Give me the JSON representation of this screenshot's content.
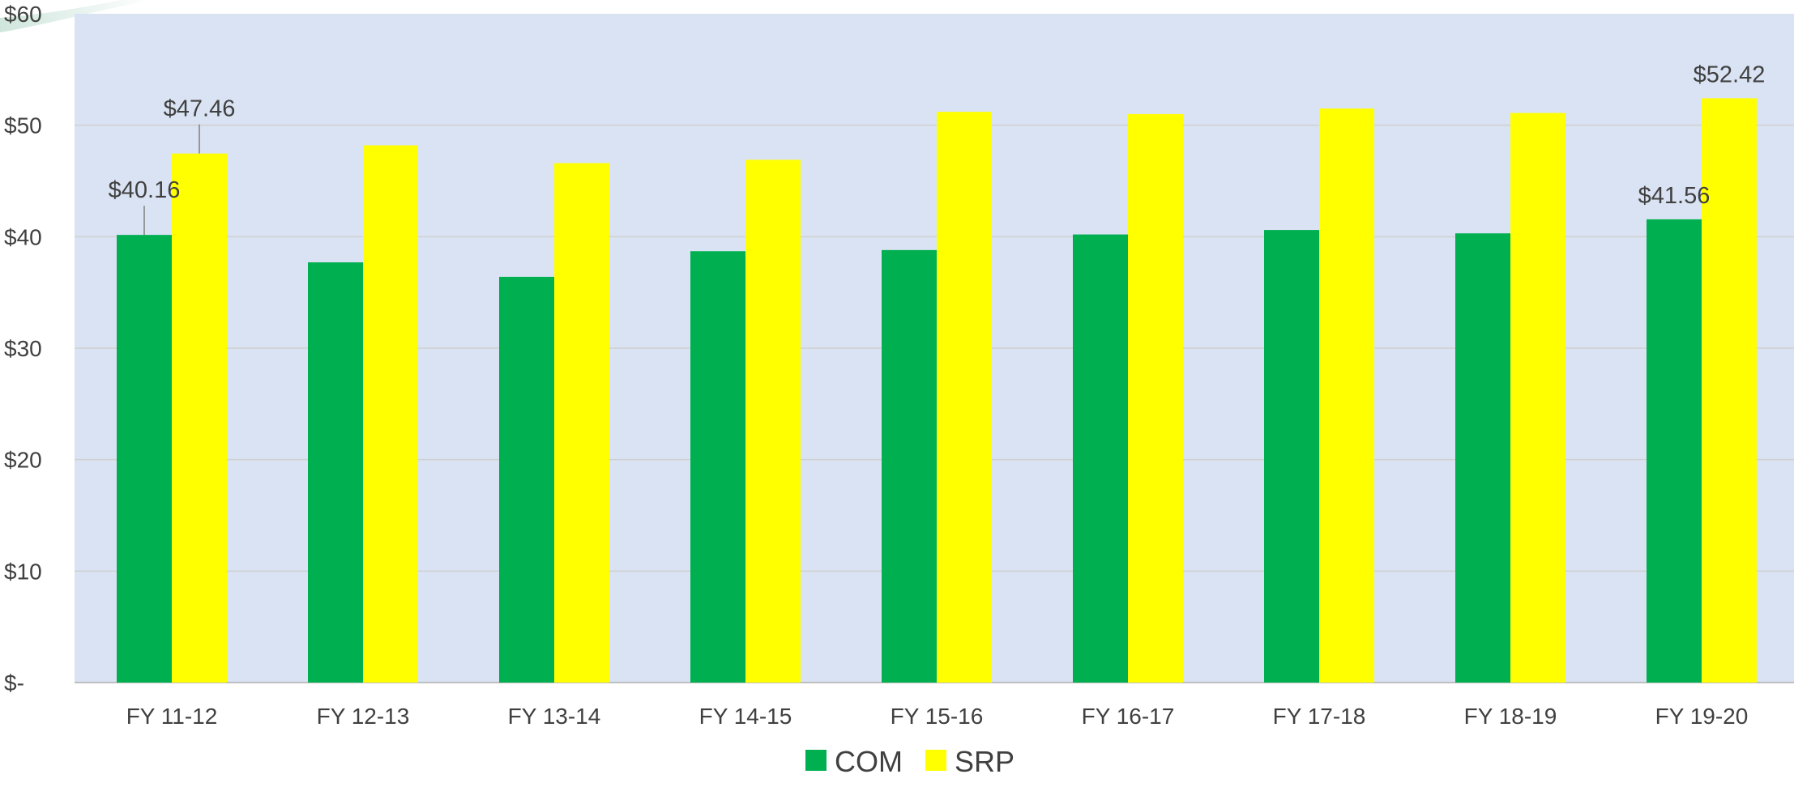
{
  "chart_data": {
    "type": "bar",
    "title": "",
    "xlabel": "",
    "ylabel": "",
    "categories": [
      "FY 11-12",
      "FY 12-13",
      "FY 13-14",
      "FY 14-15",
      "FY 15-16",
      "FY 16-17",
      "FY 17-18",
      "FY 18-19",
      "FY 19-20"
    ],
    "series": [
      {
        "name": "COM",
        "color": "#00B050",
        "values": [
          40.16,
          37.7,
          36.4,
          38.7,
          38.8,
          40.2,
          40.6,
          40.3,
          41.56
        ]
      },
      {
        "name": "SRP",
        "color": "#FFFF00",
        "values": [
          47.46,
          48.2,
          46.6,
          46.9,
          51.2,
          51.0,
          51.5,
          51.1,
          52.42
        ]
      }
    ],
    "ylim": [
      0,
      60
    ],
    "yticks": [
      {
        "value": 0,
        "label": "$-"
      },
      {
        "value": 10,
        "label": "$10"
      },
      {
        "value": 20,
        "label": "$20"
      },
      {
        "value": 30,
        "label": "$30"
      },
      {
        "value": 40,
        "label": "$40"
      },
      {
        "value": 50,
        "label": "$50"
      },
      {
        "value": 60,
        "label": "$60"
      }
    ],
    "data_labels": [
      {
        "series": 0,
        "index": 0,
        "text": "$40.16",
        "leader": true
      },
      {
        "series": 1,
        "index": 0,
        "text": "$47.46",
        "leader": true
      },
      {
        "series": 0,
        "index": 8,
        "text": "$41.56",
        "leader": false
      },
      {
        "series": 1,
        "index": 8,
        "text": "$52.42",
        "leader": false
      }
    ],
    "grid": true,
    "legend": "bottom-center",
    "plot_background": "#DAE3F3",
    "gridline_color": "#D0D0D0"
  }
}
